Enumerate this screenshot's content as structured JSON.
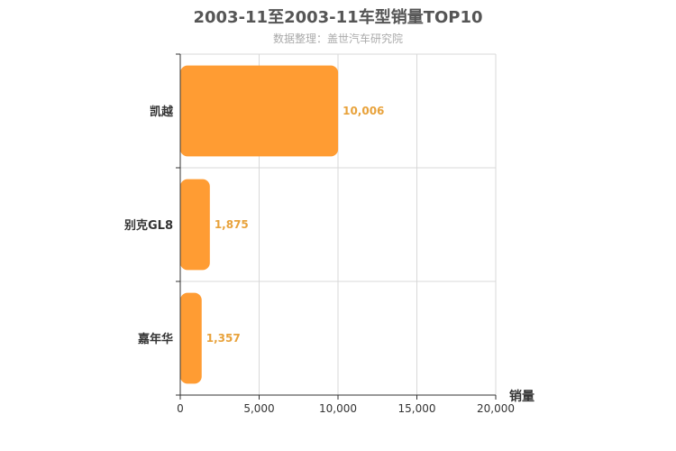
{
  "chart_data": {
    "type": "bar",
    "orientation": "horizontal",
    "title": "2003-11至2003-11车型销量TOP10",
    "subtitle": "数据整理：盖世汽车研究院",
    "categories": [
      "凯越",
      "别克GL8",
      "嘉年华"
    ],
    "values": [
      10006,
      1875,
      1357
    ],
    "value_labels": [
      "10,006",
      "1,875",
      "1,357"
    ],
    "xlabel": "销量",
    "ylabel": "",
    "xlim": [
      0,
      20000
    ],
    "x_ticks": [
      0,
      5000,
      10000,
      15000,
      20000
    ],
    "x_tick_labels": [
      "0",
      "5,000",
      "10,000",
      "15,000",
      "20,000"
    ],
    "grid": true,
    "colors": {
      "bar": "#ff9c33",
      "value_label": "#e8a23b",
      "axis": "#333333",
      "grid": "#d8d8d8",
      "text": "#333333"
    }
  }
}
